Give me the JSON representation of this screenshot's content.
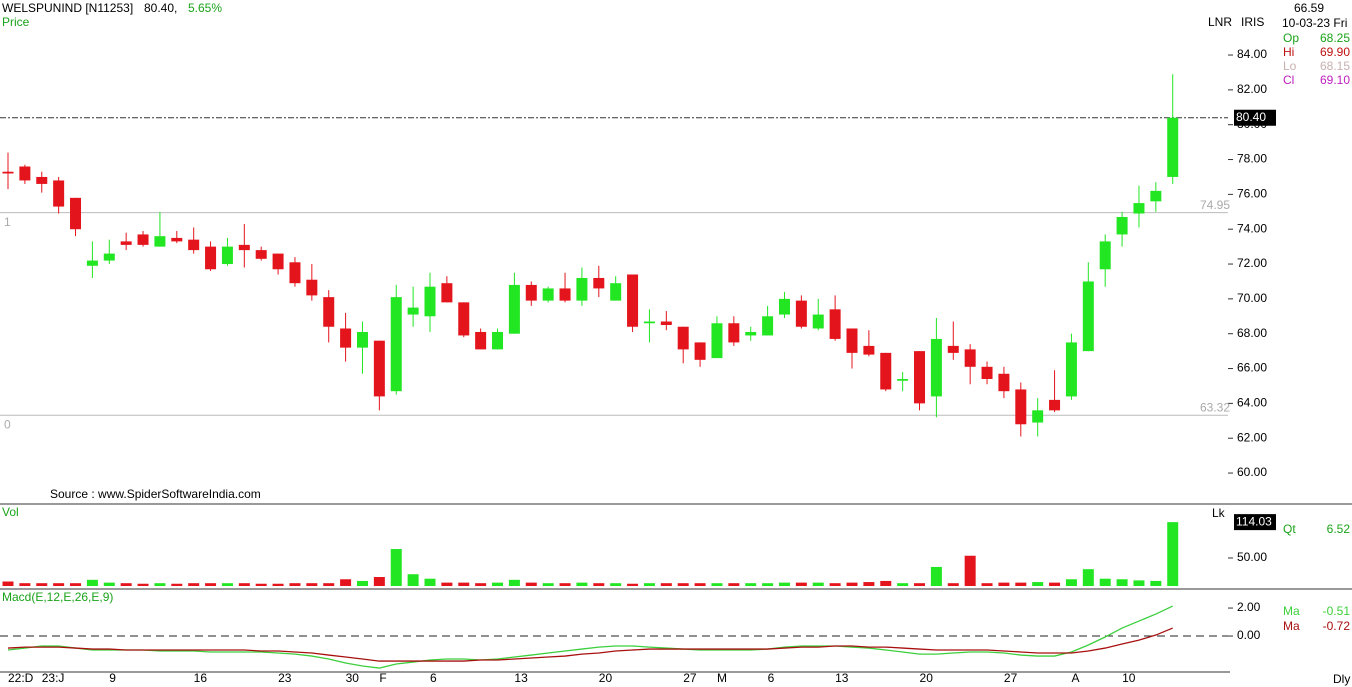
{
  "header": {
    "symbol": "WELSPUNIND [N11253]",
    "price": "80.40,",
    "change": "5.65%"
  },
  "source": "Source : www.SpiderSoftwareIndia.com",
  "labels": {
    "lnr": "LNR",
    "iris": "IRIS",
    "lk": "Lk",
    "dly": "Dly"
  },
  "info_panel": {
    "value": "66.59",
    "date": "10-03-23 Fri",
    "rows": [
      [
        "Op",
        "68.25"
      ],
      [
        "Hi",
        "69.90"
      ],
      [
        "Lo",
        "68.15"
      ],
      [
        "Cl",
        "69.10"
      ]
    ]
  },
  "chart_data": [
    {
      "type": "candlestick",
      "title": "Price",
      "categories": [
        "22:D",
        null,
        "23:J",
        null,
        null,
        null,
        "9",
        null,
        null,
        null,
        null,
        "16",
        null,
        null,
        null,
        null,
        "23",
        null,
        null,
        null,
        "30",
        null,
        "F",
        null,
        null,
        "6",
        null,
        null,
        null,
        null,
        "13",
        null,
        null,
        null,
        null,
        "20",
        null,
        null,
        null,
        null,
        "27",
        null,
        "M",
        null,
        null,
        "6",
        null,
        null,
        null,
        "13",
        null,
        null,
        null,
        null,
        "20",
        null,
        null,
        null,
        null,
        "27",
        null,
        null,
        null,
        "A",
        null,
        null,
        "10",
        null,
        null,
        null
      ],
      "open": [
        77.3,
        77.6,
        77.0,
        76.8,
        75.8,
        71.9,
        72.2,
        73.3,
        73.7,
        73.0,
        73.5,
        73.4,
        73.0,
        72.0,
        73.1,
        72.8,
        72.6,
        72.1,
        71.1,
        70.1,
        68.3,
        67.2,
        67.6,
        64.7,
        69.1,
        69.0,
        70.9,
        69.8,
        68.1,
        67.1,
        68.0,
        70.8,
        69.9,
        70.6,
        69.9,
        71.2,
        69.9,
        71.4,
        68.6,
        68.7,
        68.4,
        67.5,
        66.6,
        68.6,
        67.9,
        67.9,
        69.1,
        69.9,
        68.3,
        69.4,
        68.3,
        67.3,
        66.9,
        65.3,
        67.0,
        64.4,
        67.3,
        67.1,
        66.1,
        65.7,
        64.8,
        62.9,
        64.2,
        64.4,
        67.0,
        71.7,
        73.7,
        74.9,
        75.6,
        77.0
      ],
      "high": [
        78.4,
        77.7,
        77.3,
        77.0,
        75.8,
        73.3,
        73.4,
        73.8,
        73.9,
        74.98,
        73.9,
        74.1,
        73.3,
        73.5,
        74.3,
        73.0,
        72.6,
        72.4,
        72.0,
        70.5,
        69.2,
        68.7,
        67.6,
        70.8,
        70.7,
        71.5,
        71.3,
        69.8,
        68.3,
        68.3,
        71.5,
        71.0,
        70.7,
        71.5,
        71.8,
        71.9,
        71.3,
        71.4,
        69.4,
        69.3,
        68.4,
        67.5,
        69.0,
        69.0,
        68.4,
        69.6,
        70.4,
        70.2,
        70.0,
        70.2,
        68.3,
        68.2,
        66.9,
        65.8,
        67.0,
        68.9,
        68.7,
        67.4,
        66.4,
        66.1,
        65.2,
        64.3,
        65.9,
        68.0,
        72.1,
        73.7,
        75.0,
        76.5,
        76.7,
        82.9
      ],
      "low": [
        76.3,
        76.6,
        76.1,
        74.9,
        73.6,
        71.2,
        72.0,
        72.8,
        73.0,
        73.0,
        73.2,
        72.6,
        71.6,
        71.9,
        71.8,
        72.2,
        71.4,
        70.7,
        69.9,
        67.5,
        66.4,
        65.7,
        63.6,
        64.5,
        68.4,
        68.1,
        69.8,
        67.8,
        67.1,
        67.1,
        68.0,
        69.6,
        69.8,
        69.8,
        69.6,
        70.1,
        69.9,
        68.1,
        67.5,
        68.2,
        66.3,
        66.1,
        66.6,
        67.3,
        67.6,
        67.9,
        68.9,
        68.3,
        68.2,
        67.6,
        66.0,
        66.7,
        64.7,
        64.7,
        63.6,
        63.2,
        66.5,
        65.1,
        65.1,
        64.3,
        62.1,
        62.1,
        63.5,
        64.2,
        67.0,
        70.7,
        73.0,
        74.1,
        75.0,
        76.6
      ],
      "close": [
        77.2,
        76.8,
        76.6,
        75.3,
        74.0,
        72.2,
        72.6,
        73.1,
        73.1,
        73.6,
        73.3,
        72.8,
        71.7,
        73.0,
        72.8,
        72.3,
        71.7,
        70.9,
        70.2,
        68.4,
        67.2,
        68.1,
        64.4,
        70.1,
        69.5,
        70.7,
        69.8,
        67.9,
        67.1,
        68.1,
        70.8,
        69.9,
        70.6,
        69.9,
        71.2,
        70.6,
        70.9,
        68.4,
        68.7,
        68.5,
        67.1,
        66.5,
        68.6,
        67.5,
        68.1,
        69.0,
        70.0,
        68.4,
        69.1,
        67.7,
        66.9,
        66.8,
        64.8,
        65.4,
        64.0,
        67.7,
        66.9,
        66.1,
        65.4,
        64.7,
        62.8,
        63.6,
        63.6,
        67.5,
        71.0,
        73.3,
        74.7,
        75.5,
        76.2,
        80.4
      ],
      "up_color": "#22e622",
      "down_color": "#e4141c",
      "ylim": [
        58.28,
        87.16
      ],
      "yticks": [
        {
          "value": 60,
          "label": "60.00"
        },
        {
          "value": 62,
          "label": "62.00"
        },
        {
          "value": 64,
          "label": "64.00"
        },
        {
          "value": 66,
          "label": "66.00"
        },
        {
          "value": 68,
          "label": "68.00"
        },
        {
          "value": 70,
          "label": "70.00"
        },
        {
          "value": 72,
          "label": "72.00"
        },
        {
          "value": 74,
          "label": "74.00"
        },
        {
          "value": 76,
          "label": "76.00"
        },
        {
          "value": 78,
          "label": "78.00"
        },
        {
          "value": 80,
          "label": "80.00"
        },
        {
          "value": 82,
          "label": "82.00"
        },
        {
          "value": 84,
          "label": "84.00"
        }
      ],
      "hlines": [
        {
          "value": 74.95,
          "label": "74.95",
          "level": "1"
        },
        {
          "value": 63.32,
          "label": "63.32",
          "level": "0"
        }
      ],
      "last_label": "80.40"
    },
    {
      "type": "bar",
      "title": "Vol",
      "values": [
        8,
        5,
        5,
        5,
        5,
        11,
        6,
        5,
        4,
        5,
        4,
        5,
        5,
        5,
        5,
        4,
        4,
        5,
        5,
        5,
        12,
        9,
        16,
        66,
        21,
        13,
        6,
        6,
        5,
        6,
        11,
        6,
        5,
        5,
        6,
        5,
        5,
        4,
        5,
        5,
        5,
        5,
        5,
        5,
        5,
        5,
        6,
        6,
        6,
        5,
        6,
        7,
        9,
        5,
        5,
        34,
        5,
        54,
        5,
        6,
        6,
        7,
        6,
        12,
        30,
        13,
        12,
        10,
        9,
        114.03
      ],
      "ylim": [
        -3.6,
        144.6
      ],
      "yticks": [
        {
          "value": 50,
          "label": "50.00"
        }
      ],
      "last_label": "114.03",
      "readout": [
        "Qt",
        "6.52"
      ]
    },
    {
      "type": "line",
      "title": "Macd(E,12,E,26,E,9)",
      "series": [
        {
          "name": "Ma",
          "color": "#3ccf3c",
          "readout": "-0.51",
          "values": [
            -1.0,
            -0.86,
            -0.71,
            -0.71,
            -0.86,
            -1.0,
            -1.0,
            -1.0,
            -1.0,
            -1.07,
            -1.07,
            -1.07,
            -1.14,
            -1.14,
            -1.14,
            -1.14,
            -1.21,
            -1.29,
            -1.43,
            -1.64,
            -1.93,
            -2.14,
            -2.29,
            -2.0,
            -1.86,
            -1.71,
            -1.64,
            -1.64,
            -1.71,
            -1.64,
            -1.5,
            -1.36,
            -1.21,
            -1.07,
            -0.93,
            -0.79,
            -0.71,
            -0.71,
            -0.79,
            -0.86,
            -0.93,
            -1.0,
            -1.0,
            -1.0,
            -1.0,
            -0.93,
            -0.79,
            -0.71,
            -0.71,
            -0.71,
            -0.79,
            -0.86,
            -1.0,
            -1.14,
            -1.29,
            -1.29,
            -1.21,
            -1.14,
            -1.14,
            -1.21,
            -1.36,
            -1.43,
            -1.43,
            -1.14,
            -0.64,
            -0.07,
            0.57,
            1.07,
            1.57,
            2.14
          ]
        },
        {
          "name": "Ma",
          "color": "#a81010",
          "readout": "-0.72",
          "values": [
            -0.86,
            -0.79,
            -0.79,
            -0.79,
            -0.86,
            -0.93,
            -0.93,
            -1.0,
            -1.0,
            -1.0,
            -1.0,
            -1.0,
            -1.0,
            -1.0,
            -1.0,
            -1.07,
            -1.07,
            -1.14,
            -1.21,
            -1.36,
            -1.5,
            -1.64,
            -1.79,
            -1.79,
            -1.79,
            -1.79,
            -1.79,
            -1.79,
            -1.71,
            -1.71,
            -1.64,
            -1.57,
            -1.5,
            -1.43,
            -1.29,
            -1.21,
            -1.07,
            -1.0,
            -0.93,
            -0.93,
            -0.93,
            -0.93,
            -0.93,
            -0.93,
            -0.93,
            -0.93,
            -0.86,
            -0.79,
            -0.79,
            -0.71,
            -0.71,
            -0.79,
            -0.79,
            -0.86,
            -0.93,
            -1.0,
            -1.0,
            -1.0,
            -1.0,
            -1.07,
            -1.14,
            -1.21,
            -1.21,
            -1.21,
            -1.07,
            -0.86,
            -0.57,
            -0.29,
            0.07,
            0.57
          ]
        }
      ],
      "ylim": [
        -2.57,
        3.29
      ],
      "yticks": [
        {
          "value": 2,
          "label": "2.00"
        },
        {
          "value": 0,
          "label": "0.00"
        }
      ],
      "zero_line": true
    }
  ]
}
